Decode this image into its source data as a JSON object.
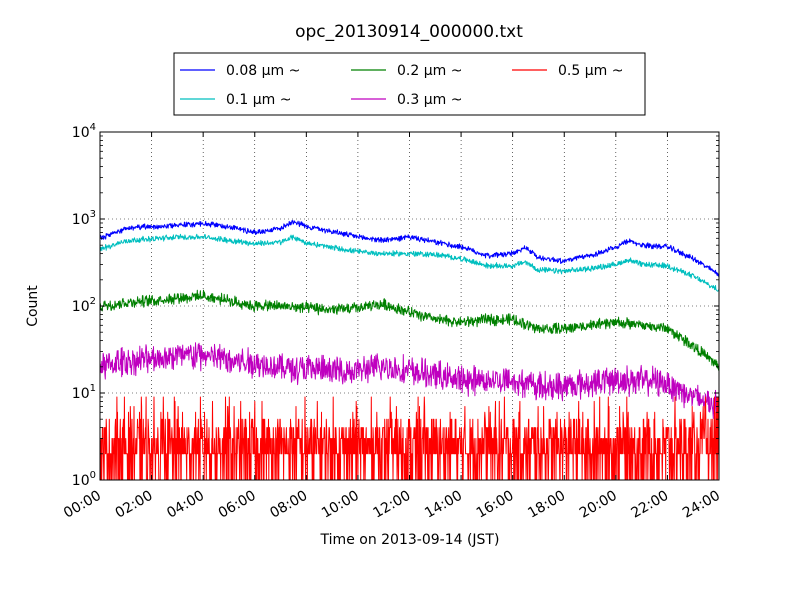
{
  "chart_data": {
    "type": "line",
    "title": "opc_20130914_000000.txt",
    "xlabel": "Time on 2013-09-14 (JST)",
    "ylabel": "Count",
    "yscale": "log",
    "grid": true,
    "legend_position": "top",
    "x_tick_labels": [
      "00:00",
      "02:00",
      "04:00",
      "06:00",
      "08:00",
      "10:00",
      "12:00",
      "14:00",
      "16:00",
      "18:00",
      "20:00",
      "22:00",
      "24:00"
    ],
    "x_ticks_hours": [
      0,
      2,
      4,
      6,
      8,
      10,
      12,
      14,
      16,
      18,
      20,
      22,
      24
    ],
    "y_tick_exponents": [
      "0",
      "1",
      "2",
      "3",
      "4"
    ],
    "y_tick_values": [
      1,
      10,
      100,
      1000,
      10000
    ],
    "xlim_hours": [
      0,
      24
    ],
    "ylim": [
      1,
      10000
    ],
    "series": [
      {
        "name": "0.08 μm ~",
        "color": "#0000ff",
        "hours": [
          0,
          0.5,
          1,
          1.5,
          2,
          3,
          4,
          5,
          6,
          7,
          7.5,
          8,
          9,
          10,
          11,
          12,
          13,
          14,
          15,
          16,
          16.5,
          17,
          18,
          19,
          20,
          20.5,
          21,
          22,
          23,
          24
        ],
        "values": [
          600,
          680,
          780,
          800,
          820,
          850,
          880,
          820,
          700,
          780,
          950,
          820,
          720,
          620,
          570,
          620,
          540,
          480,
          380,
          400,
          470,
          360,
          330,
          380,
          470,
          560,
          500,
          480,
          350,
          230
        ]
      },
      {
        "name": "0.1 μm ~",
        "color": "#00bfbf",
        "hours": [
          0,
          0.5,
          1,
          1.5,
          2,
          3,
          4,
          5,
          6,
          7,
          7.5,
          8,
          9,
          10,
          11,
          12,
          13,
          14,
          15,
          16,
          16.5,
          17,
          18,
          19,
          20,
          20.5,
          21,
          22,
          23,
          24
        ],
        "values": [
          450,
          500,
          560,
          580,
          590,
          620,
          620,
          570,
          520,
          540,
          620,
          530,
          470,
          420,
          400,
          400,
          390,
          350,
          290,
          290,
          320,
          260,
          250,
          270,
          300,
          340,
          300,
          290,
          220,
          150
        ]
      },
      {
        "name": "0.2 μm ~",
        "color": "#008000",
        "hours": [
          0,
          1,
          2,
          3,
          4,
          5,
          6,
          7,
          8,
          9,
          10,
          11,
          12,
          13,
          14,
          15,
          16,
          17,
          18,
          19,
          20,
          21,
          22,
          23,
          24
        ],
        "values": [
          100,
          110,
          115,
          125,
          130,
          115,
          100,
          100,
          95,
          90,
          95,
          105,
          85,
          70,
          65,
          70,
          70,
          55,
          55,
          60,
          65,
          60,
          55,
          35,
          20
        ]
      },
      {
        "name": "0.3 μm ~",
        "color": "#bf00bf",
        "hours": [
          0,
          1,
          2,
          3,
          4,
          5,
          6,
          7,
          8,
          9,
          10,
          11,
          12,
          13,
          14,
          15,
          16,
          17,
          18,
          19,
          20,
          21,
          22,
          23,
          24
        ],
        "values": [
          20,
          23,
          25,
          27,
          27,
          24,
          22,
          20,
          19,
          18,
          18,
          20,
          18,
          16,
          14,
          14,
          14,
          12,
          12,
          13,
          14,
          14,
          13,
          9,
          7
        ]
      },
      {
        "name": "0.5 μm ~",
        "color": "#ff0000",
        "hours": [
          0,
          24
        ],
        "values": [
          2,
          2
        ]
      }
    ]
  }
}
